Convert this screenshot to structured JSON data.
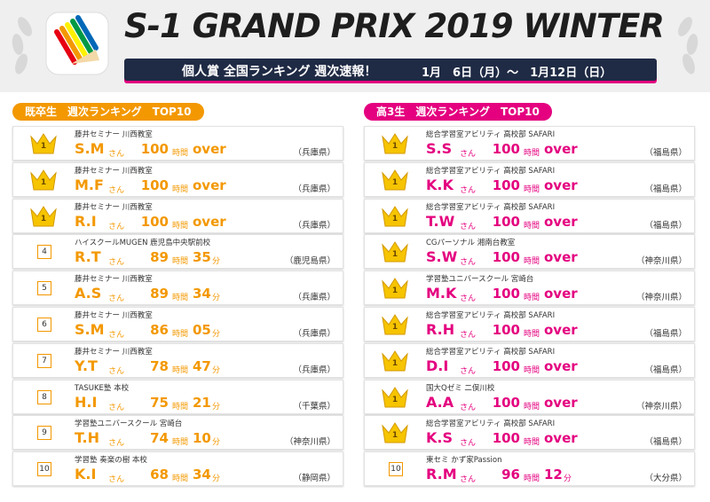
{
  "header": {
    "title": "S-1 GRAND PRIX 2019 WINTER",
    "banner": "個人賞 全国ランキング 週次速報！",
    "date": "1月　6日（月）〜　1月12日（日）"
  },
  "units": {
    "honorific": "さん",
    "hours": "時間",
    "minutes": "分"
  },
  "sections": [
    {
      "label": "既卒生　週次ランキング　TOP10",
      "entries": [
        {
          "rank": "1",
          "school": "藤井セミナー 川西教室",
          "name": "S.M",
          "hours": "100",
          "over": "over",
          "prefecture": "（兵庫県）"
        },
        {
          "rank": "1",
          "school": "藤井セミナー 川西教室",
          "name": "M.F",
          "hours": "100",
          "over": "over",
          "prefecture": "（兵庫県）"
        },
        {
          "rank": "1",
          "school": "藤井セミナー 川西教室",
          "name": "R.I",
          "hours": "100",
          "over": "over",
          "prefecture": "（兵庫県）"
        },
        {
          "rank": "4",
          "school": "ハイスクールMUGEN 鹿児島中央駅前校",
          "name": "R.T",
          "hours": "89",
          "minutes": "35",
          "prefecture": "（鹿児島県）"
        },
        {
          "rank": "5",
          "school": "藤井セミナー 川西教室",
          "name": "A.S",
          "hours": "89",
          "minutes": "34",
          "prefecture": "（兵庫県）"
        },
        {
          "rank": "6",
          "school": "藤井セミナー 川西教室",
          "name": "S.M",
          "hours": "86",
          "minutes": "05",
          "prefecture": "（兵庫県）"
        },
        {
          "rank": "7",
          "school": "藤井セミナー 川西教室",
          "name": "Y.T",
          "hours": "78",
          "minutes": "47",
          "prefecture": "（兵庫県）"
        },
        {
          "rank": "8",
          "school": "TASUKE塾 本校",
          "name": "H.I",
          "hours": "75",
          "minutes": "21",
          "prefecture": "（千葉県）"
        },
        {
          "rank": "9",
          "school": "学習塾ユニバースクール 宮崎台",
          "name": "T.H",
          "hours": "74",
          "minutes": "10",
          "prefecture": "（神奈川県）"
        },
        {
          "rank": "10",
          "school": "学習塾 奏楽の樹 本校",
          "name": "K.I",
          "hours": "68",
          "minutes": "34",
          "prefecture": "（静岡県）"
        }
      ]
    },
    {
      "label": "高3生　週次ランキング　TOP10",
      "entries": [
        {
          "rank": "1",
          "school": "総合学習室アビリティ 高校部 SAFARI",
          "name": "S.S",
          "hours": "100",
          "over": "over",
          "prefecture": "（福島県）"
        },
        {
          "rank": "1",
          "school": "総合学習室アビリティ 高校部 SAFARI",
          "name": "K.K",
          "hours": "100",
          "over": "over",
          "prefecture": "（福島県）"
        },
        {
          "rank": "1",
          "school": "総合学習室アビリティ 高校部 SAFARI",
          "name": "T.W",
          "hours": "100",
          "over": "over",
          "prefecture": "（福島県）"
        },
        {
          "rank": "1",
          "school": "CGパーソナル 湘南台教室",
          "name": "S.W",
          "hours": "100",
          "over": "over",
          "prefecture": "（神奈川県）"
        },
        {
          "rank": "1",
          "school": "学習塾ユニバースクール 宮崎台",
          "name": "M.K",
          "hours": "100",
          "over": "over",
          "prefecture": "（神奈川県）"
        },
        {
          "rank": "1",
          "school": "総合学習室アビリティ 高校部 SAFARI",
          "name": "R.H",
          "hours": "100",
          "over": "over",
          "prefecture": "（福島県）"
        },
        {
          "rank": "1",
          "school": "総合学習室アビリティ 高校部 SAFARI",
          "name": "D.I",
          "hours": "100",
          "over": "over",
          "prefecture": "（福島県）"
        },
        {
          "rank": "1",
          "school": "国大Qゼミ 二俣川校",
          "name": "A.A",
          "hours": "100",
          "over": "over",
          "prefecture": "（神奈川県）"
        },
        {
          "rank": "1",
          "school": "総合学習室アビリティ 高校部 SAFARI",
          "name": "K.S",
          "hours": "100",
          "over": "over",
          "prefecture": "（福島県）"
        },
        {
          "rank": "10",
          "school": "東セミ かず家Passion",
          "name": "R.M",
          "hours": "96",
          "minutes": "12",
          "prefecture": "（大分県）"
        }
      ]
    }
  ]
}
